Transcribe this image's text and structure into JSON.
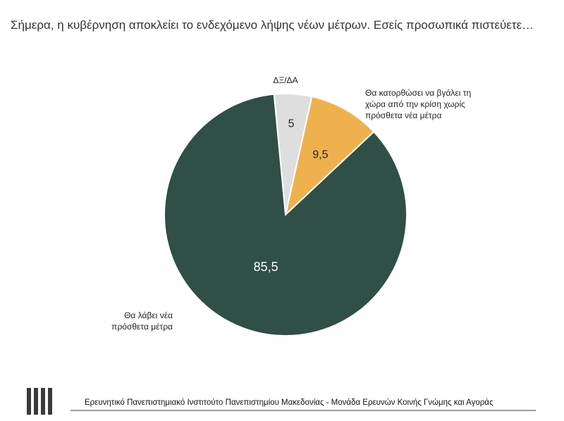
{
  "question": "Σήμερα, η κυβέρνηση αποκλείει το ενδεχόμενο λήψης νέων μέτρων. Εσείς προσωπικά πιστεύετε…",
  "footer_text": "Ερευνητικό Πανεπιστημιακό Ινστιτούτο Πανεπιστημίου Μακεδονίας - Μονάδα Ερευνών Κοινής Γνώμης και Αγοράς",
  "colors": {
    "dark_green": "#2f4f47",
    "orange": "#efb14d",
    "light_gray": "#dedede"
  },
  "chart_data": {
    "type": "pie",
    "title": "",
    "slices": [
      {
        "label": "ΔΞ/ΔΑ",
        "value": 5,
        "value_label": "5",
        "color": "#dedede"
      },
      {
        "label": "Θα κατορθώσει να βγάλει τη χώρα από την κρίση χωρίς πρόσθετα νέα μέτρα",
        "label_lines": [
          "Θα κατορθώσει να βγάλει τη",
          "χώρα από την κρίση χωρίς",
          "πρόσθετα νέα μέτρα"
        ],
        "value": 9.5,
        "value_label": "9,5",
        "color": "#efb14d"
      },
      {
        "label": "Θα λάβει νέα πρόσθετα μέτρα",
        "label_lines": [
          "Θα λάβει νέα",
          "πρόσθετα μέτρα"
        ],
        "value": 85.5,
        "value_label": "85,5",
        "color": "#2f4f47"
      }
    ]
  }
}
